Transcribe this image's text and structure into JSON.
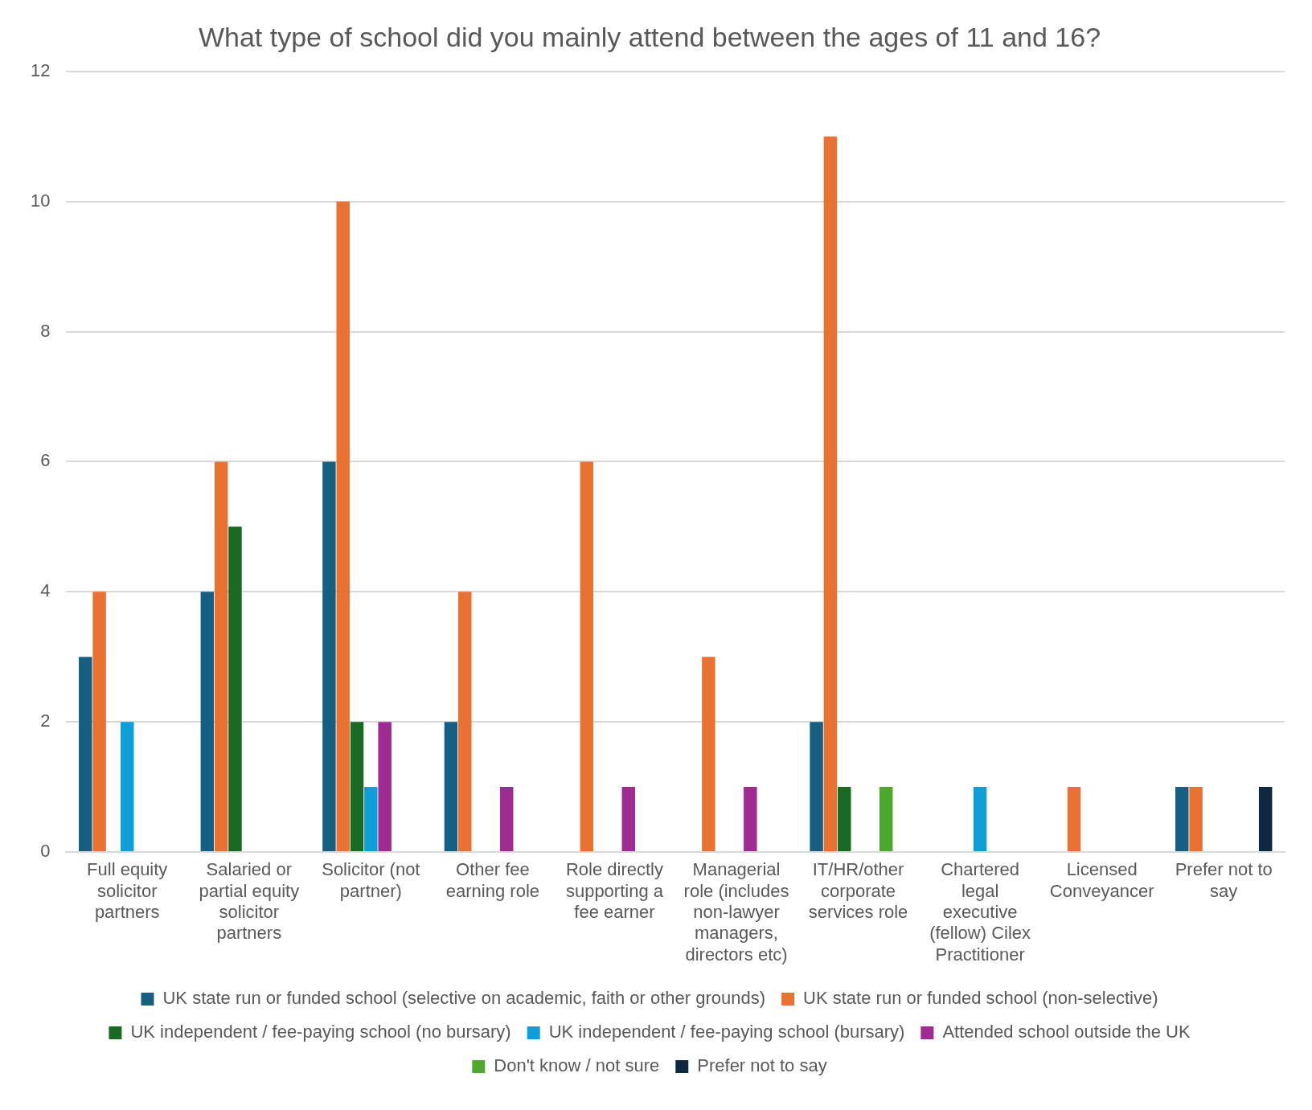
{
  "chart_data": {
    "type": "bar",
    "title": "What type of school did you mainly attend between the ages of 11 and 16?",
    "categories": [
      "Full equity solicitor partners",
      "Salaried or partial equity solicitor partners",
      "Solicitor (not partner)",
      "Other fee earning role",
      "Role directly supporting a fee earner",
      "Managerial role (includes non-lawyer managers, directors etc)",
      "IT/HR/other corporate services role",
      "Chartered legal executive (fellow) Cilex Practitioner",
      "Licensed Conveyancer",
      "Prefer not to say"
    ],
    "series": [
      {
        "name": "UK state run or funded school (selective on academic, faith or other grounds)",
        "color": "#156082",
        "values": [
          3,
          4,
          6,
          2,
          0,
          0,
          2,
          0,
          0,
          1
        ]
      },
      {
        "name": "UK state run or funded school (non-selective)",
        "color": "#e97132",
        "values": [
          4,
          6,
          10,
          4,
          6,
          3,
          11,
          0,
          1,
          1
        ]
      },
      {
        "name": "UK independent / fee-paying school (no bursary)",
        "color": "#196b24",
        "values": [
          0,
          5,
          2,
          0,
          0,
          0,
          1,
          0,
          0,
          0
        ]
      },
      {
        "name": "UK independent / fee-paying school (bursary)",
        "color": "#0f9ed5",
        "values": [
          2,
          0,
          1,
          0,
          0,
          0,
          0,
          1,
          0,
          0
        ]
      },
      {
        "name": "Attended school outside the UK",
        "color": "#a02b93",
        "values": [
          0,
          0,
          2,
          1,
          1,
          1,
          0,
          0,
          0,
          0
        ]
      },
      {
        "name": "Don't know / not sure",
        "color": "#4ea72e",
        "values": [
          0,
          0,
          0,
          0,
          0,
          0,
          1,
          0,
          0,
          0
        ]
      },
      {
        "name": "Prefer not to say",
        "color": "#0e2841",
        "values": [
          0,
          0,
          0,
          0,
          0,
          0,
          0,
          0,
          0,
          1
        ]
      }
    ],
    "ylim": [
      0,
      12
    ],
    "yticks": [
      0,
      2,
      4,
      6,
      8,
      10,
      12
    ],
    "grid": "y",
    "legend": "bottom"
  }
}
